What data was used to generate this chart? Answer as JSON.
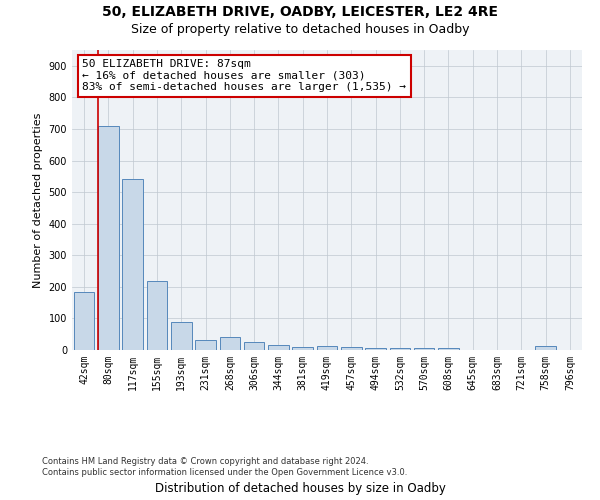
{
  "title1": "50, ELIZABETH DRIVE, OADBY, LEICESTER, LE2 4RE",
  "title2": "Size of property relative to detached houses in Oadby",
  "xlabel": "Distribution of detached houses by size in Oadby",
  "ylabel": "Number of detached properties",
  "categories": [
    "42sqm",
    "80sqm",
    "117sqm",
    "155sqm",
    "193sqm",
    "231sqm",
    "268sqm",
    "306sqm",
    "344sqm",
    "381sqm",
    "419sqm",
    "457sqm",
    "494sqm",
    "532sqm",
    "570sqm",
    "608sqm",
    "645sqm",
    "683sqm",
    "721sqm",
    "758sqm",
    "796sqm"
  ],
  "values": [
    185,
    710,
    540,
    220,
    90,
    32,
    40,
    25,
    15,
    10,
    12,
    10,
    7,
    7,
    7,
    7,
    0,
    0,
    0,
    12,
    0
  ],
  "bar_color": "#c8d8e8",
  "bar_edge_color": "#5588bb",
  "vline_color": "#cc0000",
  "annotation_text": "50 ELIZABETH DRIVE: 87sqm\n← 16% of detached houses are smaller (303)\n83% of semi-detached houses are larger (1,535) →",
  "annotation_box_color": "#ffffff",
  "annotation_box_edge": "#cc0000",
  "ylim": [
    0,
    950
  ],
  "yticks": [
    0,
    100,
    200,
    300,
    400,
    500,
    600,
    700,
    800,
    900
  ],
  "grid_color": "#c0c8d0",
  "background_color": "#eef2f6",
  "footer_text": "Contains HM Land Registry data © Crown copyright and database right 2024.\nContains public sector information licensed under the Open Government Licence v3.0.",
  "title1_fontsize": 10,
  "title2_fontsize": 9,
  "xlabel_fontsize": 8.5,
  "ylabel_fontsize": 8,
  "tick_fontsize": 7,
  "annotation_fontsize": 8,
  "footer_fontsize": 6
}
